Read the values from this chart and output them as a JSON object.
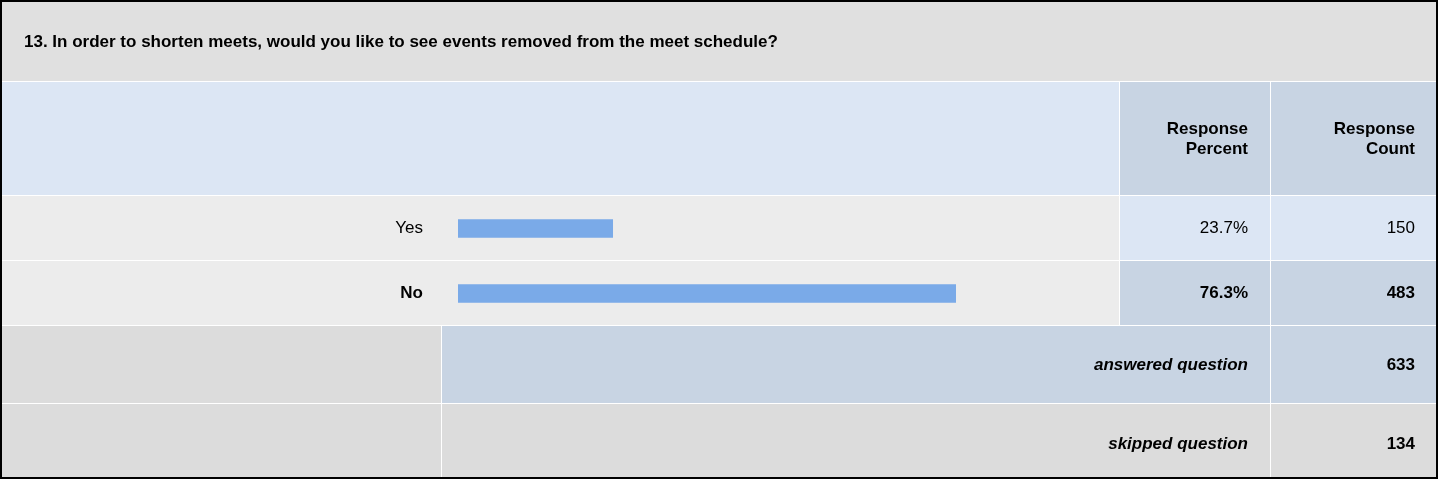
{
  "chart_data": {
    "type": "bar",
    "orientation": "horizontal",
    "title": "13. In order to shorten meets, would you like to see events removed from the meet schedule?",
    "categories": [
      "Yes",
      "No"
    ],
    "values": [
      23.7,
      76.3
    ],
    "value_labels": [
      "23.7%",
      "76.3%"
    ],
    "color": "#7aaae8",
    "tick_labels": "y",
    "legend": false,
    "annotations": [
      "Response Percent",
      "Response Count",
      "150",
      "483",
      "answered question",
      "633",
      "skipped question",
      "134"
    ]
  }
}
